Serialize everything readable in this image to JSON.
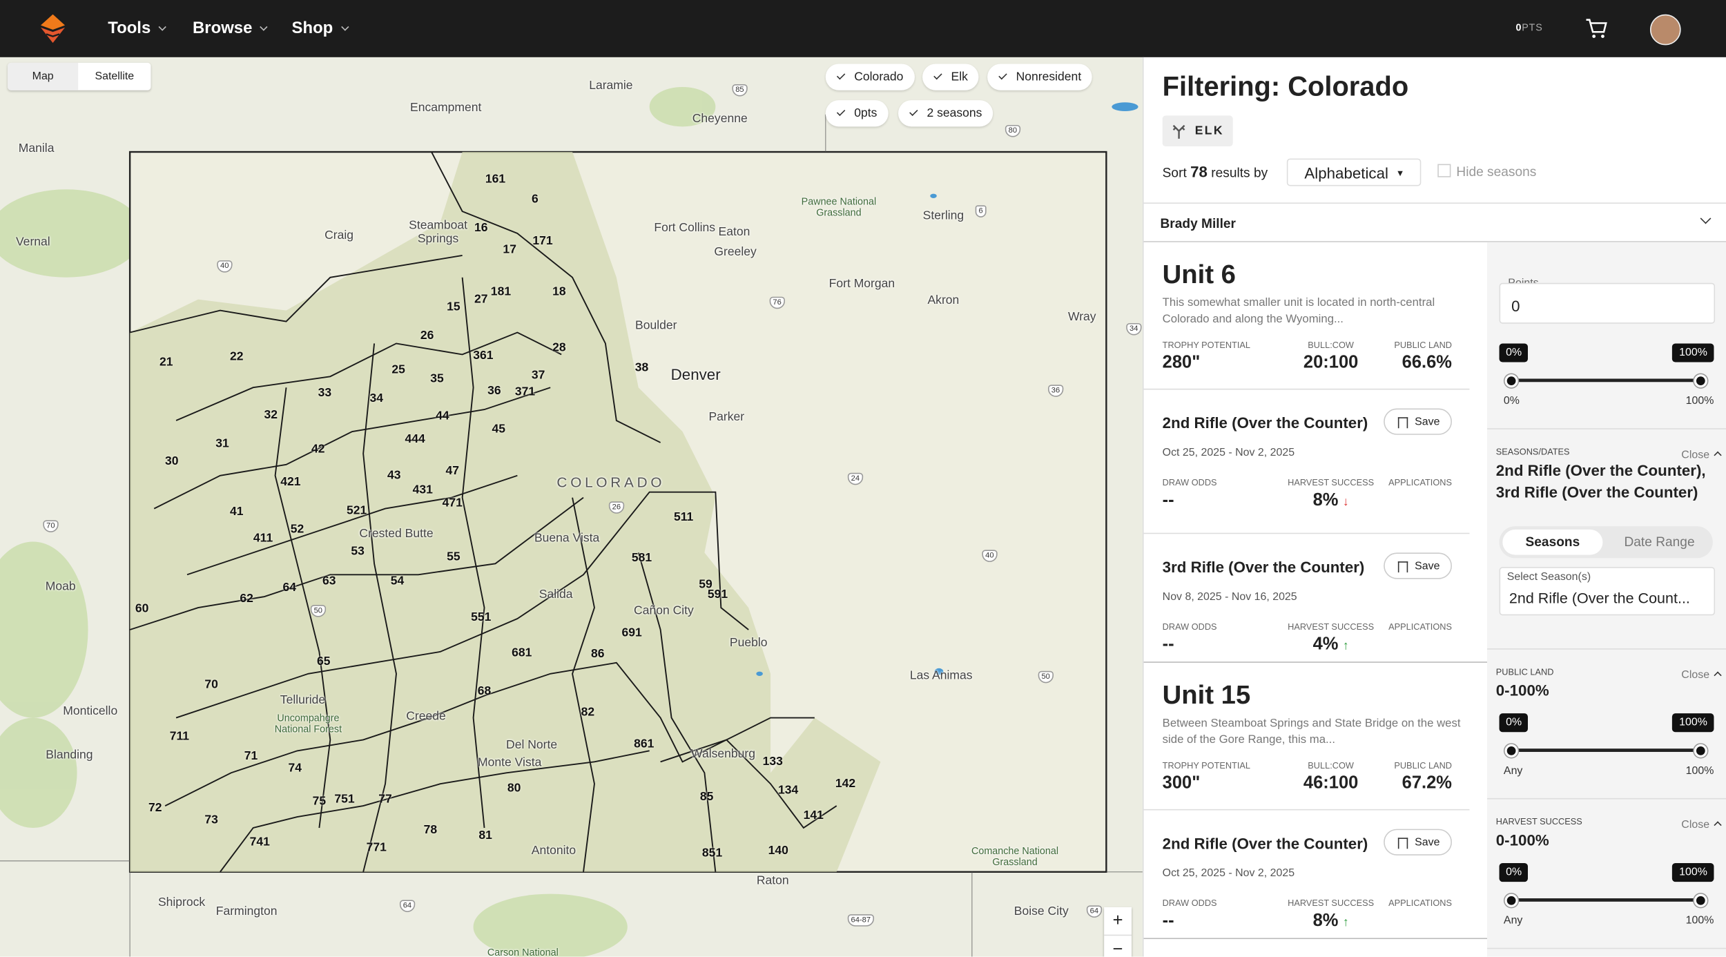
{
  "nav": {
    "items": [
      "Tools",
      "Browse",
      "Shop"
    ],
    "points": "0",
    "points_label": "PTS"
  },
  "map": {
    "toggle": [
      "Map",
      "Satellite"
    ],
    "chips": [
      "Colorado",
      "Elk",
      "Nonresident",
      "0pts",
      "2 seasons"
    ],
    "places": [
      "Laramie",
      "Encampment",
      "Cheyenne",
      "Manila",
      "Vernal",
      "Craig",
      "Steamboat Springs",
      "Fort Collins",
      "Eaton",
      "Greeley",
      "Pawnee National Grassland",
      "Sterling",
      "Fort Morgan",
      "Akron",
      "Wray",
      "Boulder",
      "Denver",
      "Parker",
      "COLORADO",
      "Moab",
      "Buena Vista",
      "Salida",
      "Crested Butte",
      "Cañon City",
      "Pueblo",
      "Las Animas",
      "Monticello",
      "Blanding",
      "Telluride",
      "Uncompahgre National Forest",
      "Creede",
      "Del Norte",
      "Monte Vista",
      "Walsenburg",
      "Antonito",
      "Comanche National Grassland",
      "Raton",
      "Boise City",
      "Shiprock",
      "Farmington",
      "Carson National"
    ],
    "shields": [
      "85",
      "80",
      "40",
      "76",
      "6",
      "36",
      "24",
      "26",
      "50",
      "70",
      "40",
      "50",
      "64",
      "64",
      "64-87",
      "34"
    ],
    "units": [
      "161",
      "6",
      "16",
      "171",
      "17",
      "181",
      "18",
      "15",
      "27",
      "26",
      "28",
      "21",
      "22",
      "361",
      "37",
      "38",
      "25",
      "35",
      "36",
      "371",
      "33",
      "34",
      "32",
      "44",
      "45",
      "444",
      "31",
      "42",
      "47",
      "43",
      "30",
      "431",
      "421",
      "471",
      "521",
      "41",
      "52",
      "411",
      "53",
      "511",
      "581",
      "55",
      "54",
      "63",
      "64",
      "59",
      "591",
      "62",
      "60",
      "551",
      "691",
      "681",
      "86",
      "65",
      "70",
      "68",
      "82",
      "861",
      "133",
      "711",
      "71",
      "74",
      "142",
      "134",
      "80",
      "85",
      "75",
      "751",
      "77",
      "72",
      "141",
      "73",
      "78",
      "81",
      "741",
      "771",
      "140",
      "851"
    ],
    "zoom": [
      "+",
      "−"
    ]
  },
  "panel": {
    "title": "Filtering: Colorado",
    "species": "ELK",
    "sort_prefix": "Sort",
    "count": "78",
    "sort_suffix": "results by",
    "sort_option": "Alphabetical",
    "hide_seasons": "Hide seasons",
    "account": "Brady Miller",
    "units": [
      {
        "name": "Unit 6",
        "description": "This somewhat smaller unit is located in north-central Colorado and along the Wyoming...",
        "stats": [
          {
            "label": "TROPHY POTENTIAL",
            "value": "280\""
          },
          {
            "label": "BULL:COW",
            "value": "20:100"
          },
          {
            "label": "PUBLIC LAND",
            "value": "66.6%"
          }
        ],
        "hunts": [
          {
            "name": "2nd Rifle (Over the Counter)",
            "save": "Save",
            "dates": "Oct 25, 2025 - Nov 2, 2025",
            "stats": [
              {
                "label": "DRAW ODDS",
                "value": "--"
              },
              {
                "label": "HARVEST SUCCESS",
                "value": "8%",
                "trend": "down"
              },
              {
                "label": "APPLICATIONS"
              }
            ]
          },
          {
            "name": "3rd Rifle (Over the Counter)",
            "save": "Save",
            "dates": "Nov 8, 2025 - Nov 16, 2025",
            "stats": [
              {
                "label": "DRAW ODDS",
                "value": "--"
              },
              {
                "label": "HARVEST SUCCESS",
                "value": "4%",
                "trend": "up"
              },
              {
                "label": "APPLICATIONS"
              }
            ]
          }
        ]
      },
      {
        "name": "Unit 15",
        "description": "Between Steamboat Springs and State Bridge on the west side of the Gore Range, this ma...",
        "stats": [
          {
            "label": "TROPHY POTENTIAL",
            "value": "300\""
          },
          {
            "label": "BULL:COW",
            "value": "46:100"
          },
          {
            "label": "PUBLIC LAND",
            "value": "67.2%"
          }
        ],
        "hunts": [
          {
            "name": "2nd Rifle (Over the Counter)",
            "save": "Save",
            "dates": "Oct 25, 2025 - Nov 2, 2025",
            "stats": [
              {
                "label": "DRAW ODDS",
                "value": "--"
              },
              {
                "label": "HARVEST SUCCESS",
                "value": "8%",
                "trend": "up"
              },
              {
                "label": "APPLICATIONS"
              }
            ]
          }
        ]
      }
    ]
  },
  "filters": {
    "points": {
      "label": "Points",
      "value": "0",
      "min_badge": "0%",
      "max_badge": "100%",
      "min_label": "0%",
      "max_label": "100%"
    },
    "seasons": {
      "label": "SEASONS/DATES",
      "close": "Close",
      "value": "2nd Rifle (Over the Counter), 3rd Rifle (Over the Counter)",
      "tabs": [
        "Seasons",
        "Date Range"
      ],
      "select_label": "Select Season(s)",
      "select_value": "2nd Rifle (Over the Count..."
    },
    "public_land": {
      "label": "PUBLIC LAND",
      "close": "Close",
      "value": "0-100%",
      "min_badge": "0%",
      "max_badge": "100%",
      "min_label": "Any",
      "max_label": "100%"
    },
    "harvest": {
      "label": "HARVEST SUCCESS",
      "close": "Close",
      "value": "0-100%",
      "min_badge": "0%",
      "max_badge": "100%",
      "min_label": "Any",
      "max_label": "100%"
    }
  }
}
